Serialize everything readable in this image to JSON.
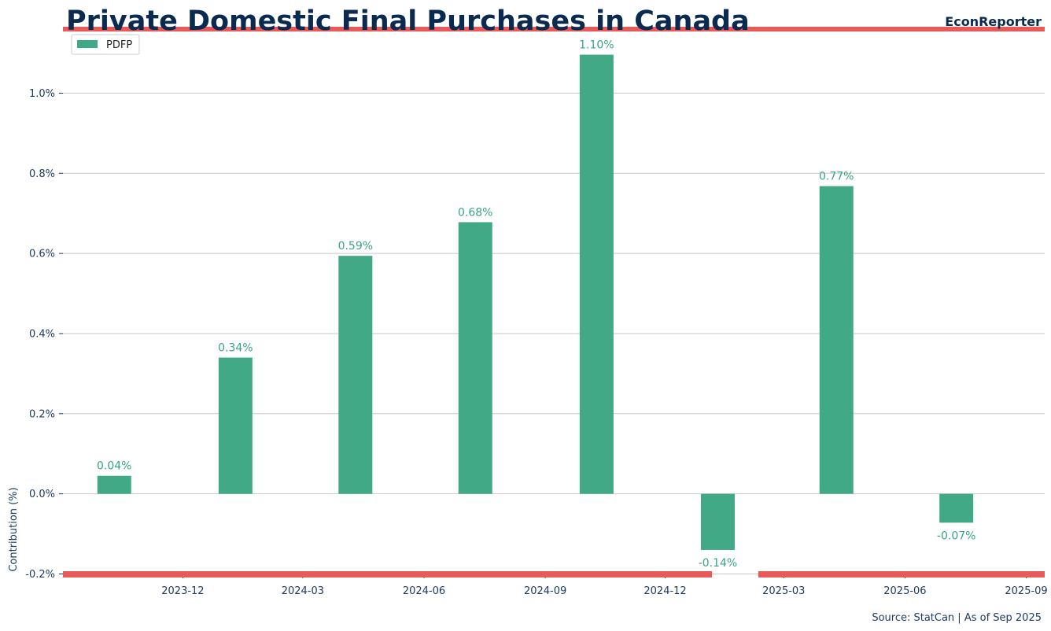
{
  "header": {
    "title": "Private Domestic Final Purchases in Canada",
    "brand": "EconReporter"
  },
  "footer": {
    "source": "Source: StatCan | As of Sep 2025"
  },
  "colors": {
    "bar": "#42a987",
    "accent": "#e85a5a",
    "grid": "#c8c8c8",
    "label": "#3aa57f"
  },
  "chart_data": {
    "type": "bar",
    "ylabel": "Contribution (%)",
    "ylim": [
      -0.2,
      1.1
    ],
    "yticks": [
      -0.2,
      0.0,
      0.2,
      0.4,
      0.6,
      0.8,
      1.0
    ],
    "ytick_labels": [
      "-0.2%",
      "0.0%",
      "0.2%",
      "0.4%",
      "0.6%",
      "0.8%",
      "1.0%"
    ],
    "xlim": [
      "2023-09-01",
      "2025-09-15"
    ],
    "xticks": [
      "2023-12",
      "2024-03",
      "2024-06",
      "2024-09",
      "2024-12",
      "2025-03",
      "2025-06",
      "2025-09"
    ],
    "grid": "horizontal",
    "legend_position": "top-left",
    "series": [
      {
        "name": "PDFP",
        "x": [
          "2023-10",
          "2024-01",
          "2024-04",
          "2024-07",
          "2024-10",
          "2025-01",
          "2025-04",
          "2025-07"
        ],
        "values": [
          0.045,
          0.34,
          0.594,
          0.678,
          1.096,
          -0.14,
          0.768,
          -0.072
        ],
        "labels": [
          "0.04%",
          "0.34%",
          "0.59%",
          "0.68%",
          "1.10%",
          "-0.14%",
          "0.77%",
          "-0.07%"
        ]
      }
    ]
  }
}
